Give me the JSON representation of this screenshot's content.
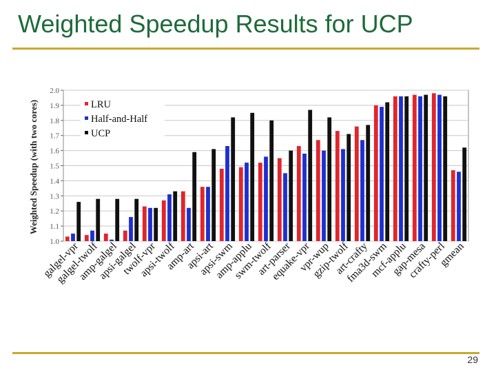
{
  "slide": {
    "title": "Weighted Speedup Results for UCP",
    "page_number": "29"
  },
  "colors": {
    "title": "#1e6b3a",
    "rule": "#c8a92e",
    "LRU": "#e0262c",
    "Half-and-Half": "#1f2fd0",
    "UCP": "#111111"
  },
  "chart_data": {
    "type": "bar",
    "title": "",
    "xlabel": "",
    "ylabel": "Weighted Speedup (with two cores)",
    "ylim": [
      1.0,
      2.0
    ],
    "yticks": [
      "1.0",
      "1.1",
      "1.2",
      "1.3",
      "1.4",
      "1.5",
      "1.6",
      "1.7",
      "1.8",
      "1.9",
      "2.0"
    ],
    "grid": true,
    "legend_position": "top-left",
    "categories": [
      "galgel-vpr",
      "galgel-twolf",
      "amp-galgel",
      "apsi-galgel",
      "twolf-vpr",
      "apsi-twolf",
      "amp-art",
      "apsi-art",
      "apsi-swm",
      "amp-applu",
      "swm-twolf",
      "art-parser",
      "equake-vpr",
      "vpr-wup",
      "gzip-twolf",
      "art-crafty",
      "fma3d-swm",
      "mcf-applu",
      "gap-mesa",
      "crafty-perl",
      "gmean"
    ],
    "series": [
      {
        "name": "LRU",
        "values": [
          1.03,
          1.04,
          1.05,
          1.07,
          1.23,
          1.27,
          1.33,
          1.36,
          1.48,
          1.49,
          1.52,
          1.55,
          1.63,
          1.67,
          1.73,
          1.76,
          1.9,
          1.96,
          1.97,
          1.98,
          1.47
        ]
      },
      {
        "name": "Half-and-Half",
        "values": [
          1.05,
          1.07,
          1.01,
          1.16,
          1.22,
          1.31,
          1.22,
          1.36,
          1.63,
          1.52,
          1.56,
          1.45,
          1.58,
          1.6,
          1.61,
          1.67,
          1.89,
          1.96,
          1.96,
          1.97,
          1.46
        ]
      },
      {
        "name": "UCP",
        "values": [
          1.26,
          1.28,
          1.28,
          1.28,
          1.22,
          1.33,
          1.59,
          1.61,
          1.82,
          1.85,
          1.8,
          1.6,
          1.87,
          1.82,
          1.71,
          1.77,
          1.92,
          1.96,
          1.97,
          1.96,
          1.62
        ]
      }
    ]
  }
}
